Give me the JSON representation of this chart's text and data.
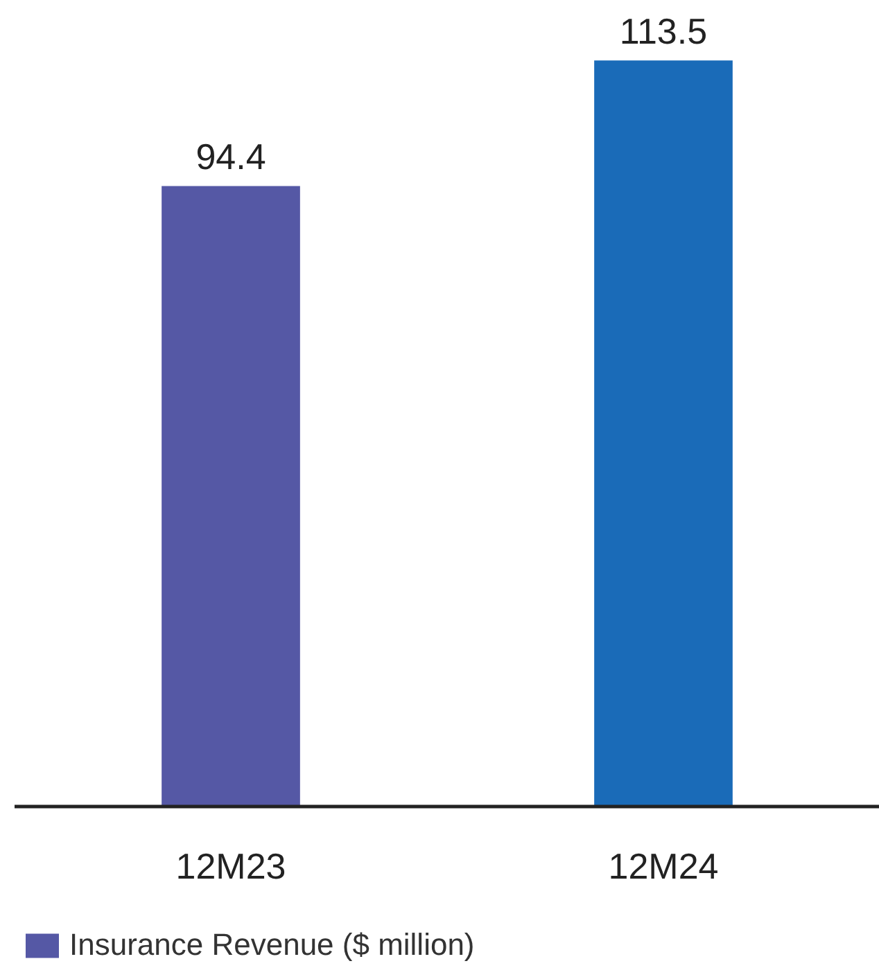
{
  "chart_data": {
    "type": "bar",
    "categories": [
      "12M23",
      "12M24"
    ],
    "series": [
      {
        "name": "Insurance Revenue ($ million)",
        "colors": [
          "#5558a5",
          "#1a6bb8"
        ],
        "values": [
          94.4,
          113.5
        ]
      }
    ],
    "data_labels": true,
    "legend": "bottom left",
    "grid": false
  }
}
